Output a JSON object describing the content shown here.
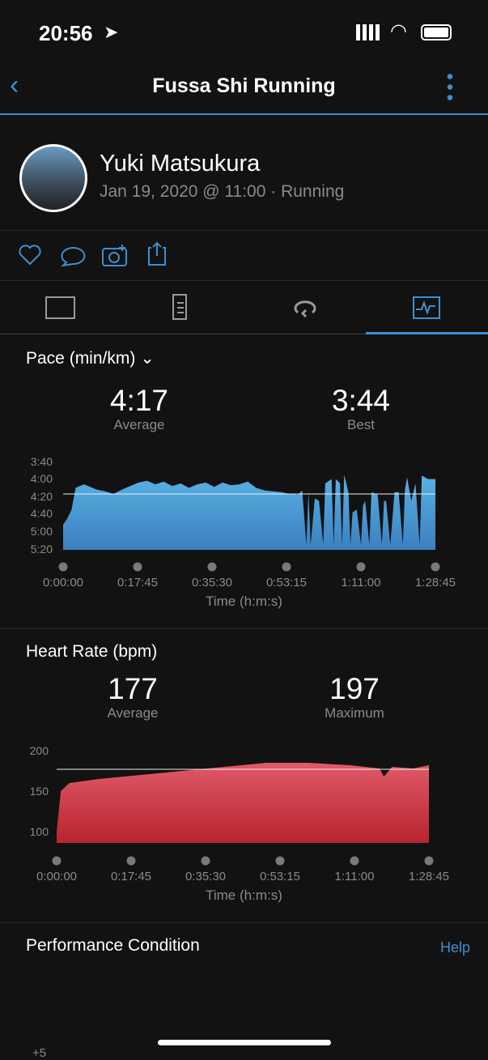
{
  "status": {
    "time": "20:56"
  },
  "nav": {
    "title": "Fussa Shi Running"
  },
  "profile": {
    "name": "Yuki Matsukura",
    "subtitle": "Jan 19, 2020 @ 11:00 · Running"
  },
  "actions": [
    "heart-icon",
    "comment-icon",
    "add-photo-icon",
    "share-icon"
  ],
  "tabs": [
    {
      "icon": "map-icon"
    },
    {
      "icon": "details-icon"
    },
    {
      "icon": "laps-icon"
    },
    {
      "icon": "charts-icon",
      "active": true
    }
  ],
  "colors": {
    "accent": "#3d8fd0",
    "pace": "#4fa8dc",
    "hr": "#d23c4c"
  },
  "pace": {
    "title": "Pace (min/km)",
    "average": "4:17",
    "average_label": "Average",
    "best": "3:44",
    "best_label": "Best"
  },
  "hr": {
    "title": "Heart Rate (bpm)",
    "average": "177",
    "average_label": "Average",
    "max": "197",
    "max_label": "Maximum"
  },
  "perf": {
    "title": "Performance Condition",
    "help": "Help",
    "tick": "+5"
  },
  "chart_data": [
    {
      "type": "area",
      "title": "Pace (min/km)",
      "xlabel": "Time (h:m:s)",
      "yticks": [
        "3:40",
        "4:00",
        "4:20",
        "4:40",
        "5:00",
        "5:20"
      ],
      "xticks": [
        "0:00:00",
        "0:17:45",
        "0:35:30",
        "0:53:15",
        "1:11:00",
        "1:28:45"
      ],
      "ylim": [
        "5:20",
        "3:40"
      ],
      "reference_line": "4:17",
      "points": [
        [
          "0:00:00",
          "4:52"
        ],
        [
          "0:01:00",
          "4:45"
        ],
        [
          "0:02:00",
          "4:35"
        ],
        [
          "0:03:00",
          "4:10"
        ],
        [
          "0:05:00",
          "4:06"
        ],
        [
          "0:08:00",
          "4:12"
        ],
        [
          "0:10:00",
          "4:14"
        ],
        [
          "0:12:00",
          "4:17"
        ],
        [
          "0:14:00",
          "4:12"
        ],
        [
          "0:16:00",
          "4:08"
        ],
        [
          "0:18:00",
          "4:04"
        ],
        [
          "0:20:00",
          "4:02"
        ],
        [
          "0:22:00",
          "4:06"
        ],
        [
          "0:24:00",
          "4:03"
        ],
        [
          "0:26:00",
          "4:08"
        ],
        [
          "0:28:00",
          "4:05"
        ],
        [
          "0:30:00",
          "4:10"
        ],
        [
          "0:32:00",
          "4:06"
        ],
        [
          "0:34:00",
          "4:04"
        ],
        [
          "0:36:00",
          "4:09"
        ],
        [
          "0:38:00",
          "4:04"
        ],
        [
          "0:40:00",
          "4:07"
        ],
        [
          "0:42:00",
          "4:06"
        ],
        [
          "0:44:00",
          "4:03"
        ],
        [
          "0:46:00",
          "4:10"
        ],
        [
          "0:48:00",
          "4:13"
        ],
        [
          "0:50:00",
          "4:14"
        ],
        [
          "0:52:00",
          "4:15"
        ],
        [
          "0:54:00",
          "4:17"
        ],
        [
          "0:56:00",
          "4:18"
        ],
        [
          "0:57:00",
          "4:13"
        ],
        [
          "0:58:00",
          "5:15"
        ],
        [
          "0:58:30",
          "4:15"
        ],
        [
          "0:59:00",
          "5:15"
        ],
        [
          "1:00:00",
          "4:22"
        ],
        [
          "1:01:00",
          "4:25"
        ],
        [
          "1:02:00",
          "5:15"
        ],
        [
          "1:02:30",
          "4:05"
        ],
        [
          "1:04:00",
          "4:00"
        ],
        [
          "1:04:30",
          "5:15"
        ],
        [
          "1:05:00",
          "4:00"
        ],
        [
          "1:06:00",
          "4:05"
        ],
        [
          "1:06:30",
          "5:15"
        ],
        [
          "1:07:00",
          "3:55"
        ],
        [
          "1:08:00",
          "4:15"
        ],
        [
          "1:08:30",
          "5:15"
        ],
        [
          "1:09:00",
          "4:38"
        ],
        [
          "1:10:00",
          "4:35"
        ],
        [
          "1:11:00",
          "5:15"
        ],
        [
          "1:11:30",
          "4:30"
        ],
        [
          "1:12:00",
          "4:25"
        ],
        [
          "1:13:00",
          "5:15"
        ],
        [
          "1:13:30",
          "4:15"
        ],
        [
          "1:15:00",
          "4:18"
        ],
        [
          "1:16:00",
          "5:15"
        ],
        [
          "1:16:30",
          "4:25"
        ],
        [
          "1:17:00",
          "4:25"
        ],
        [
          "1:18:00",
          "5:15"
        ],
        [
          "1:19:00",
          "4:15"
        ],
        [
          "1:20:00",
          "4:15"
        ],
        [
          "1:21:00",
          "5:15"
        ],
        [
          "1:21:30",
          "4:12"
        ],
        [
          "1:22:00",
          "3:58"
        ],
        [
          "1:23:00",
          "4:25"
        ],
        [
          "1:24:00",
          "4:05"
        ],
        [
          "1:25:00",
          "5:15"
        ],
        [
          "1:25:30",
          "3:56"
        ],
        [
          "1:27:00",
          "4:00"
        ],
        [
          "1:28:45",
          "4:00"
        ]
      ]
    },
    {
      "type": "area",
      "title": "Heart Rate (bpm)",
      "xlabel": "Time (h:m:s)",
      "yticks": [
        "200",
        "150",
        "100"
      ],
      "xticks": [
        "0:00:00",
        "0:17:45",
        "0:35:30",
        "0:53:15",
        "1:11:00",
        "1:28:45"
      ],
      "ylim": [
        86,
        200
      ],
      "reference_line": 177,
      "points": [
        [
          "0:00:00",
          100
        ],
        [
          "0:00:30",
          125
        ],
        [
          "0:01:00",
          150
        ],
        [
          "0:03:00",
          160
        ],
        [
          "0:10:00",
          165
        ],
        [
          "0:20:00",
          170
        ],
        [
          "0:30:00",
          175
        ],
        [
          "0:40:00",
          180
        ],
        [
          "0:50:00",
          185
        ],
        [
          "1:00:00",
          185
        ],
        [
          "1:10:00",
          182
        ],
        [
          "1:17:00",
          178
        ],
        [
          "1:18:00",
          168
        ],
        [
          "1:20:00",
          180
        ],
        [
          "1:25:00",
          178
        ],
        [
          "1:28:45",
          182
        ]
      ]
    }
  ]
}
